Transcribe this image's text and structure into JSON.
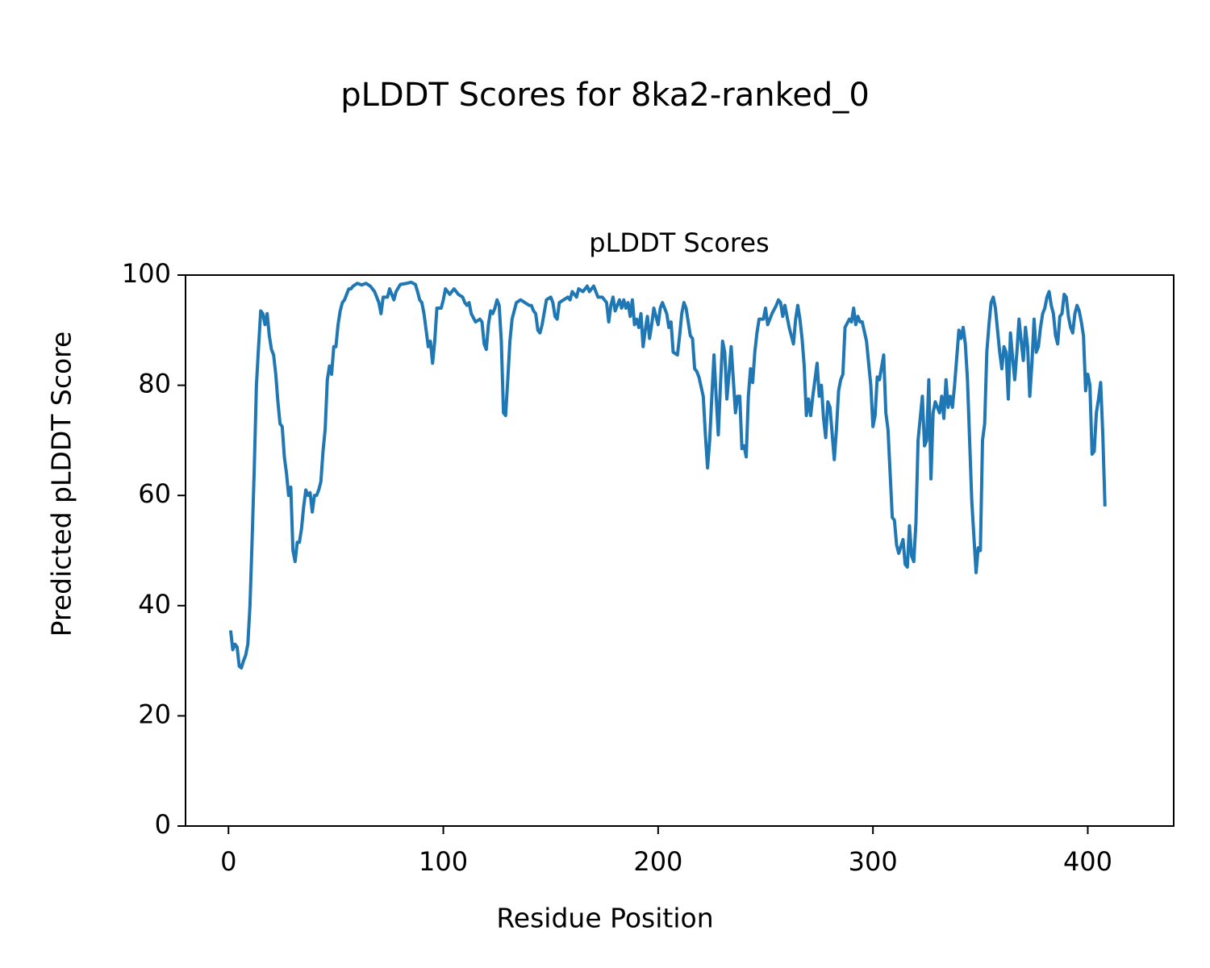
{
  "chart_data": {
    "type": "line",
    "title": "pLDDT Scores for 8ka2-ranked_0",
    "subtitle": "pLDDT Scores",
    "xlabel": "Residue Position",
    "ylabel": "Predicted pLDDT Score",
    "xlim": [
      -20,
      440
    ],
    "ylim": [
      0,
      100
    ],
    "xticks": [
      0,
      100,
      200,
      300,
      400
    ],
    "yticks": [
      0,
      20,
      40,
      60,
      80,
      100
    ],
    "grid": false,
    "x": [
      1,
      2,
      3,
      4,
      5,
      6,
      7,
      8,
      9,
      10,
      11,
      12,
      13,
      14,
      15,
      16,
      17,
      18,
      19,
      20,
      21,
      22,
      23,
      24,
      25,
      26,
      27,
      28,
      29,
      30,
      31,
      32,
      33,
      34,
      35,
      36,
      37,
      38,
      39,
      40,
      41,
      42,
      43,
      44,
      45,
      46,
      47,
      48,
      49,
      50,
      51,
      52,
      53,
      54,
      55,
      56,
      57,
      58,
      60,
      62,
      64,
      66,
      68,
      70,
      71,
      72,
      74,
      75,
      76,
      77,
      78,
      80,
      83,
      85,
      87,
      88,
      89,
      90,
      91,
      92,
      93,
      94,
      95,
      96,
      97,
      99,
      100,
      101,
      103,
      105,
      107,
      109,
      110,
      111,
      112,
      113,
      115,
      117,
      118,
      119,
      120,
      121,
      122,
      123,
      124,
      125,
      126,
      127,
      128,
      129,
      130,
      131,
      132,
      134,
      136,
      138,
      140,
      141,
      142,
      143,
      144,
      145,
      146,
      148,
      150,
      151,
      152,
      153,
      154,
      156,
      158,
      159,
      160,
      162,
      163,
      165,
      167,
      168,
      170,
      172,
      174,
      176,
      177,
      178,
      179,
      180,
      181,
      182,
      183,
      184,
      185,
      186,
      187,
      188,
      189,
      190,
      191,
      192,
      193,
      194,
      195,
      196,
      197,
      198,
      199,
      200,
      201,
      202,
      204,
      205,
      206,
      207,
      209,
      210,
      211,
      212,
      213,
      215,
      216,
      217,
      218,
      219,
      221,
      222,
      223,
      224,
      225,
      226,
      227,
      228,
      229,
      230,
      231,
      232,
      233,
      234,
      235,
      236,
      237,
      238,
      239,
      240,
      241,
      242,
      243,
      244,
      245,
      246,
      247,
      249,
      250,
      251,
      252,
      253,
      255,
      256,
      257,
      258,
      259,
      260,
      261,
      263,
      264,
      265,
      266,
      267,
      268,
      269,
      270,
      271,
      272,
      274,
      275,
      276,
      277,
      278,
      279,
      280,
      282,
      283,
      284,
      285,
      286,
      287,
      289,
      290,
      291,
      292,
      293,
      294,
      295,
      297,
      298,
      299,
      300,
      301,
      302,
      303,
      305,
      306,
      307,
      308,
      309,
      310,
      311,
      312,
      314,
      315,
      316,
      317,
      318,
      319,
      320,
      321,
      323,
      324,
      325,
      326,
      327,
      328,
      329,
      331,
      332,
      333,
      334,
      335,
      336,
      337,
      338,
      340,
      341,
      342,
      343,
      344,
      345,
      346,
      348,
      349,
      350,
      351,
      352,
      353,
      354,
      355,
      356,
      357,
      358,
      359,
      360,
      361,
      362,
      363,
      364,
      365,
      366,
      367,
      368,
      369,
      370,
      371,
      372,
      373,
      374,
      375,
      376,
      377,
      378,
      379,
      380,
      381,
      382,
      383,
      384,
      385,
      386,
      387,
      388,
      389,
      390,
      391,
      392,
      393,
      394,
      395,
      396,
      397,
      398,
      399,
      400,
      401,
      402,
      403,
      404,
      405,
      406,
      407,
      408
    ],
    "series": [
      {
        "name": "pLDDT",
        "color": "#1f77b4",
        "values": [
          35.5,
          32,
          33,
          32.5,
          29,
          28.7,
          30,
          31,
          33,
          40,
          52,
          65,
          80,
          87,
          93.5,
          93,
          91,
          93,
          89,
          86.5,
          85.5,
          82,
          77,
          73,
          72.5,
          67,
          64,
          60,
          61.5,
          50,
          48,
          51.5,
          51.5,
          54,
          58,
          61,
          60,
          60.5,
          57,
          60,
          60,
          61,
          62.5,
          68,
          72,
          81,
          83.5,
          82,
          87,
          87,
          91,
          93.5,
          95,
          95.5,
          96.5,
          97.5,
          97.5,
          98,
          98.5,
          98.2,
          98.5,
          98,
          97,
          95,
          93,
          96,
          96,
          97.5,
          96.5,
          95.5,
          97,
          98.3,
          98.5,
          98.7,
          98.3,
          97,
          95.5,
          95,
          93,
          90,
          87,
          88,
          84,
          88,
          94,
          94,
          95.5,
          97.5,
          96.5,
          97.5,
          96.5,
          96,
          95,
          94.5,
          95,
          93,
          91.5,
          92,
          91.5,
          87.5,
          86.5,
          91,
          93.5,
          93,
          94,
          95.5,
          94.5,
          88,
          75,
          74.5,
          81,
          88,
          92,
          95,
          95.5,
          95,
          94.5,
          94.5,
          93.5,
          93,
          90,
          89.5,
          91,
          95.5,
          96,
          95,
          92.5,
          92,
          95,
          95.5,
          96,
          95.5,
          97,
          96,
          97.5,
          97,
          98,
          97,
          98,
          96,
          96,
          95,
          91.5,
          94.5,
          96,
          93.5,
          94.5,
          95.5,
          94,
          95.5,
          94,
          95,
          92.5,
          95.5,
          91,
          92,
          90.5,
          93,
          87,
          90,
          92.5,
          88.5,
          91,
          94,
          92.5,
          91,
          94,
          95,
          93,
          90.5,
          91.5,
          86,
          85.5,
          89,
          93,
          95,
          94,
          89,
          88.5,
          83,
          82.5,
          81.5,
          78,
          71,
          65,
          70,
          78,
          85.5,
          78,
          71,
          80,
          88,
          86,
          77.5,
          82,
          87,
          81,
          75,
          78,
          78,
          68.5,
          69,
          67,
          78,
          83,
          80.5,
          86,
          89.5,
          92,
          92,
          94,
          91,
          92,
          93,
          94.5,
          95.5,
          95,
          92.5,
          94.5,
          92.5,
          90.5,
          87.5,
          92,
          94.5,
          92,
          88.5,
          83.5,
          74.5,
          77.5,
          74.5,
          78,
          84,
          78,
          80,
          74,
          70.5,
          77,
          76,
          66.5,
          72,
          79,
          81,
          82,
          90.5,
          92,
          91.5,
          94,
          91,
          92.5,
          91.5,
          91.5,
          88,
          84,
          80,
          72.5,
          74.5,
          81.5,
          81,
          85.5,
          75,
          72,
          64,
          56,
          55.5,
          51,
          49.5,
          52,
          47.5,
          47,
          54.5,
          49,
          48,
          55,
          70,
          78,
          69,
          70,
          81,
          63,
          75,
          77,
          75,
          78,
          74,
          81,
          76,
          78,
          76,
          80,
          90,
          88.5,
          90.5,
          87.5,
          81,
          70,
          59,
          46,
          50.5,
          50,
          70,
          73,
          86,
          91,
          95,
          96,
          94,
          90,
          86,
          83,
          87,
          86,
          77.5,
          89.5,
          85,
          81,
          86,
          92,
          88,
          84.5,
          90.5,
          87,
          78,
          84,
          92,
          86,
          87,
          90.5,
          93,
          94,
          96,
          97,
          94.5,
          93,
          89,
          87.5,
          92.5,
          93,
          96.5,
          96,
          92.5,
          90.5,
          89.5,
          93,
          94.5,
          93.5,
          91.5,
          89,
          79,
          82,
          80,
          67.5,
          68,
          75,
          77.5,
          80.5,
          71,
          58
        ]
      }
    ]
  }
}
